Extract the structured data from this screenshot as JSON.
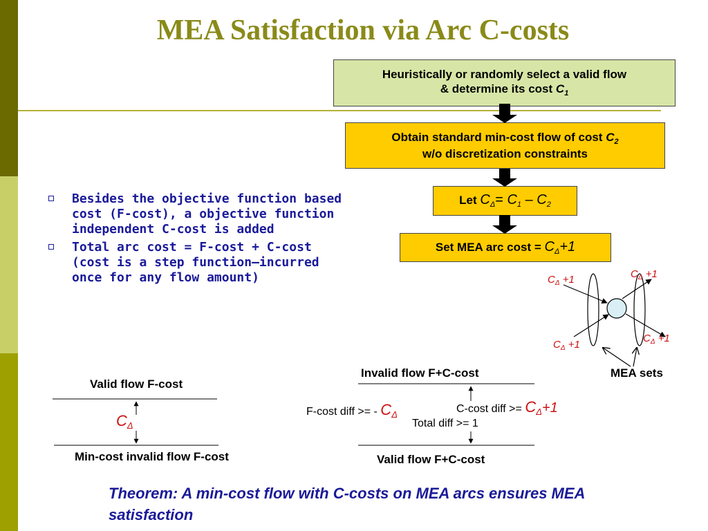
{
  "title": "MEA Satisfaction via Arc C-costs",
  "colors": {
    "title": "#8a8a1a",
    "sidebar_dark": "#6a6a00",
    "sidebar_light": "#c8cf66",
    "sidebar_mid": "#9ea000",
    "box_green": "#d7e6a6",
    "box_yellow": "#ffcc00",
    "text_blue": "#1a1a99",
    "text_red": "#cc1111"
  },
  "flow": {
    "step1": {
      "line1": "Heuristically or randomly select a valid flow",
      "line2_prefix": "& determine its cost ",
      "var": "C",
      "sub": "1"
    },
    "step2": {
      "line1_prefix": "Obtain standard min-cost flow of cost ",
      "var": "C",
      "sub": "2",
      "line2": "w/o discretization constraints"
    },
    "step3": {
      "prefix": "Let ",
      "c": "C",
      "delta": "Δ",
      "eq": "= ",
      "c1": "C",
      "sub1": "1",
      "minus": " – ",
      "c2": "C",
      "sub2": "2"
    },
    "step4": {
      "prefix": "Set MEA arc cost = ",
      "c": "C",
      "delta": "Δ",
      "plus": "+1"
    }
  },
  "bullets": [
    "Besides the objective function based cost (F-cost), a objective function independent C-cost is added",
    "Total arc cost = F-cost + C-cost (cost is a step function—incurred once for any flow amount)"
  ],
  "node_diagram": {
    "label_c": "C",
    "label_delta": "Δ",
    "label_plus": " +1",
    "mea_sets": "MEA sets"
  },
  "left_diagram": {
    "top_label": "Valid flow F-cost",
    "c": "C",
    "delta": "Δ",
    "bottom_label": "Min-cost invalid flow F-cost"
  },
  "right_diagram": {
    "top_label": "Invalid flow F+C-cost",
    "fcost_prefix": "F-cost diff >= - ",
    "ccost_prefix": "C-cost diff >= ",
    "c": "C",
    "delta": "Δ",
    "plus": "+1",
    "total": "Total diff >= 1",
    "bottom_label": "Valid flow F+C-cost"
  },
  "theorem": "Theorem: A min-cost flow with C-costs on MEA arcs ensures MEA satisfaction"
}
